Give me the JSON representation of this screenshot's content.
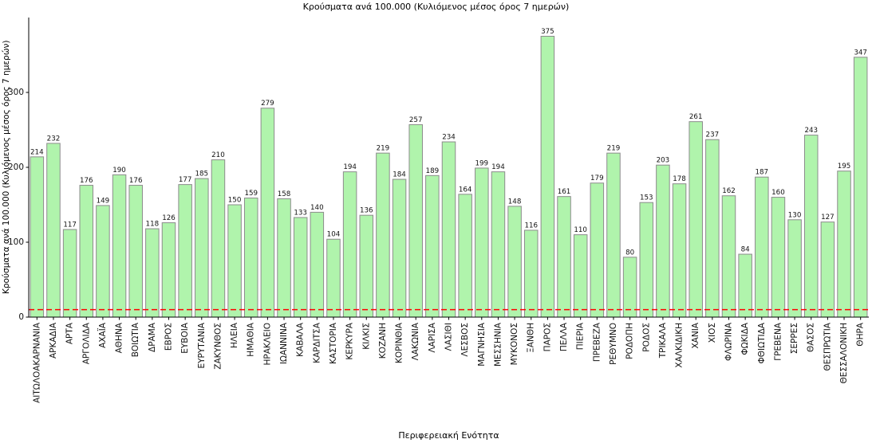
{
  "chart_data": {
    "type": "bar",
    "title": "Κρούσματα ανά 100.000 (Κυλιόμενος μέσος όρος 7 ημερών)",
    "xlabel": "Περιφερειακή Ενότητα",
    "ylabel": "Κρούσματα ανά 100.000 (Κυλιόμενος μέσος όρος 7 ημερών)",
    "categories": [
      "ΑΙΤΩΛΟΑΚΑΡΝΑΝΙΑ",
      "ΑΡΚΑΔΙΑ",
      "ΑΡΤΑ",
      "ΑΡΓΟΛΙΔΑ",
      "ΑΧΑΪΑ",
      "ΑΘΗΝΑ",
      "ΒΟΙΩΤΙΑ",
      "ΔΡΑΜΑ",
      "ΕΒΡΟΣ",
      "ΕΥΒΟΙΑ",
      "ΕΥΡΥΤΑΝΙΑ",
      "ΖΑΚΥΝΘΟΣ",
      "ΗΛΕΙΑ",
      "ΗΜΑΘΙΑ",
      "ΗΡΑΚΛΕΙΟ",
      "ΙΩΑΝΝΙΝΑ",
      "ΚΑΒΑΛΑ",
      "ΚΑΡΔΙΤΣΑ",
      "ΚΑΣΤΟΡΙΑ",
      "ΚΕΡΚΥΡΑ",
      "ΚΙΛΚΙΣ",
      "ΚΟΖΑΝΗ",
      "ΚΟΡΙΝΘΙΑ",
      "ΛΑΚΩΝΙΑ",
      "ΛΑΡΙΣΑ",
      "ΛΑΣΙΘΙ",
      "ΛΕΣΒΟΣ",
      "ΜΑΓΝΗΣΙΑ",
      "ΜΕΣΣΗΝΙΑ",
      "ΜΥΚΟΝΟΣ",
      "ΞΑΝΘΗ",
      "ΠΑΡΟΣ",
      "ΠΕΛΛΑ",
      "ΠΙΕΡΙΑ",
      "ΠΡΕΒΕΖΑ",
      "ΡΕΘΥΜΝΟ",
      "ΡΟΔΟΠΗ",
      "ΡΟΔΟΣ",
      "ΤΡΙΚΑΛΑ",
      "ΧΑΛΚΙΔΙΚΗ",
      "ΧΑΝΙΑ",
      "ΧΙΟΣ",
      "ΦΛΩΡΙΝΑ",
      "ΦΩΚΙΔΑ",
      "ΦΘΙΩΤΙΔΑ",
      "ΓΡΕΒΕΝΑ",
      "ΣΕΡΡΕΣ",
      "ΘΑΣΟΣ",
      "ΘΕΣΠΡΩΤΙΑ",
      "ΘΕΣΣΑΛΟΝΙΚΗ",
      "ΘΗΡΑ"
    ],
    "values": [
      214,
      232,
      117,
      176,
      149,
      190,
      176,
      118,
      126,
      177,
      185,
      210,
      150,
      159,
      279,
      158,
      133,
      140,
      104,
      194,
      136,
      219,
      184,
      257,
      189,
      234,
      164,
      199,
      194,
      148,
      116,
      375,
      161,
      110,
      179,
      219,
      80,
      153,
      203,
      178,
      261,
      237,
      162,
      84,
      187,
      160,
      130,
      243,
      127,
      195,
      347
    ],
    "ylim": [
      0,
      400
    ],
    "yticks": [
      0,
      100,
      200,
      300
    ],
    "grid": false,
    "legend": null,
    "value_labels": true,
    "bar_color": "#b0f4ac",
    "bar_edge_color": "#8c8c8c",
    "axis_color": "#000000",
    "threshold_line": {
      "y": 10,
      "color": "#ff0000",
      "style": "dashed"
    }
  }
}
